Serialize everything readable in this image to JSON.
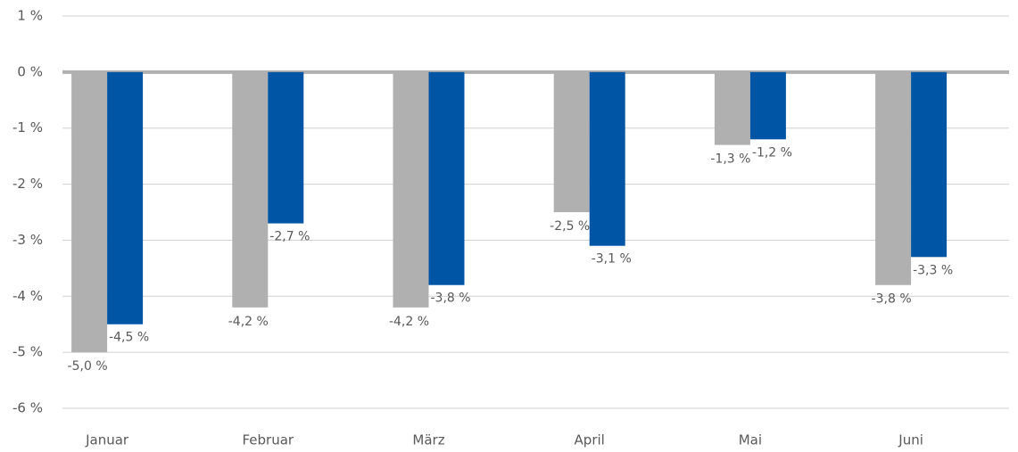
{
  "chart_data": {
    "type": "bar",
    "categories": [
      "Januar",
      "Februar",
      "März",
      "April",
      "Mai",
      "Juni"
    ],
    "series": [
      {
        "color": "#b0b0b0",
        "values": [
          -5.0,
          -4.2,
          -4.2,
          -2.5,
          -1.3,
          -3.8
        ],
        "value_labels": [
          "-5,0 %",
          "-4,2 %",
          "-4,2 %",
          "-2,5 %",
          "-1,3 %",
          "-3,8 %"
        ]
      },
      {
        "color": "#0055a4",
        "values": [
          -4.5,
          -2.7,
          -3.8,
          -3.1,
          -1.2,
          -3.3
        ],
        "value_labels": [
          "-4,5 %",
          "-2,7 %",
          "-3,8 %",
          "-3,1 %",
          "-1,2 %",
          "-3,3 %"
        ]
      }
    ],
    "ylim": [
      -6,
      1
    ],
    "yticks": [
      {
        "value": 1,
        "label": "1 %"
      },
      {
        "value": 0,
        "label": "0 %"
      },
      {
        "value": -1,
        "label": "-1 %"
      },
      {
        "value": -2,
        "label": "-2 %"
      },
      {
        "value": -3,
        "label": "-3 %"
      },
      {
        "value": -4,
        "label": "-4 %"
      },
      {
        "value": -5,
        "label": "-5 %"
      },
      {
        "value": -6,
        "label": "-6 %"
      }
    ],
    "grid": true
  }
}
